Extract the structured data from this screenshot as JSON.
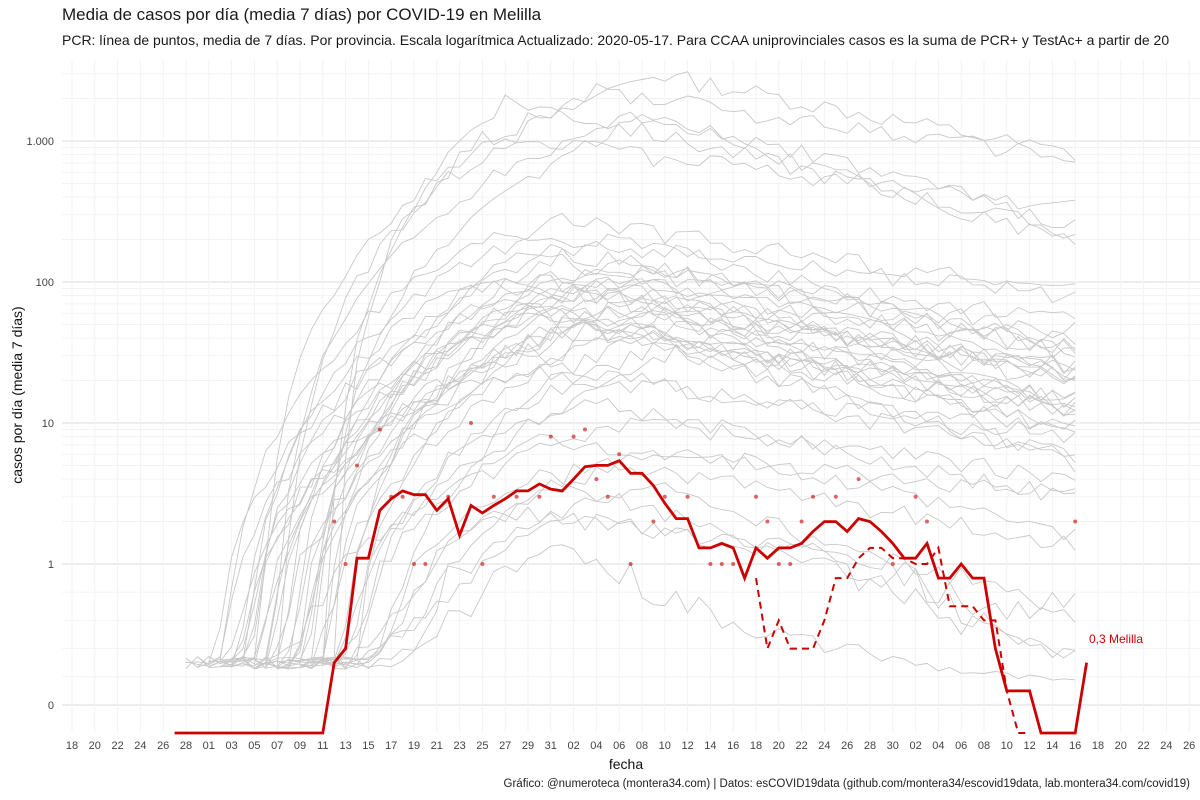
{
  "title": "Media de casos por día (media 7 días) por COVID-19 en Melilla",
  "subtitle": "PCR: línea de puntos, media de 7 días. Por provincia. Escala logarítmica  Actualizado: 2020-05-17. Para CCAA uniprovinciales casos es la suma de PCR+ y TestAc+ a partir de 20",
  "caption": "Gráfico: @numeroteca (montera34.com) | Datos: esCOVID19data (github.com/montera34/escovid19data, lab.montera34.com/covid19)",
  "chart_data": {
    "type": "line",
    "xlabel": "fecha",
    "ylabel": "casos por día (media 7 días)",
    "y_scale": "log",
    "grid": true,
    "y_ticks": [
      {
        "value": 0,
        "label": "0"
      },
      {
        "value": 1,
        "label": "1"
      },
      {
        "value": 10,
        "label": "10"
      },
      {
        "value": 100,
        "label": "100"
      },
      {
        "value": 1000,
        "label": "1.000"
      }
    ],
    "x_ticks": [
      "18",
      "20",
      "22",
      "24",
      "26",
      "28",
      "01",
      "03",
      "05",
      "07",
      "09",
      "11",
      "13",
      "15",
      "17",
      "19",
      "21",
      "23",
      "25",
      "27",
      "29",
      "31",
      "02",
      "04",
      "06",
      "08",
      "10",
      "12",
      "14",
      "16",
      "18",
      "20",
      "22",
      "24",
      "26",
      "28",
      "30",
      "02",
      "04",
      "06",
      "08",
      "10",
      "12",
      "14",
      "16",
      "18",
      "20",
      "22",
      "24",
      "26"
    ],
    "x_range": [
      "2020-02-18",
      "2020-06-26"
    ],
    "colors": {
      "highlight": "#cc0000",
      "background_lines": "#c8c8c8"
    },
    "highlight": {
      "name": "Melilla",
      "end_label": "0,3 Melilla",
      "x_start": "2020-02-27",
      "avg": [
        0,
        0,
        0,
        0,
        0,
        0,
        0,
        0,
        0,
        0,
        0,
        0,
        0,
        0,
        0.3,
        0.4,
        1.1,
        1.1,
        2.4,
        2.9,
        3.3,
        3.1,
        3.1,
        2.4,
        2.9,
        1.6,
        2.6,
        2.3,
        2.6,
        2.9,
        3.3,
        3.3,
        3.7,
        3.4,
        3.3,
        4,
        4.9,
        5,
        5,
        5.4,
        4.4,
        4.4,
        3.6,
        2.7,
        2.1,
        2.1,
        1.3,
        1.3,
        1.4,
        1.3,
        0.9,
        1.3,
        1.1,
        1.3,
        1.3,
        1.4,
        1.7,
        2,
        2,
        1.7,
        2.1,
        2,
        1.7,
        1.4,
        1.1,
        1.1,
        1.4,
        0.9,
        0.9,
        1,
        0.9,
        0.9,
        0.4,
        0.1,
        0.1,
        0.1,
        0,
        0,
        0,
        0,
        0.3
      ],
      "pcr_avg_x_start": "2020-04-18",
      "pcr_avg": [
        0.9,
        0.4,
        0.6,
        0.4,
        0.4,
        0.4,
        0.6,
        0.9,
        0.9,
        1.1,
        1.3,
        1.3,
        1.1,
        1.1,
        1,
        1,
        1.3,
        0.7,
        0.7,
        0.7,
        0.6,
        0.6,
        0.1,
        0,
        0
      ],
      "daily_points": [
        {
          "x": "2020-03-12",
          "y": 2
        },
        {
          "x": "2020-03-13",
          "y": 1
        },
        {
          "x": "2020-03-14",
          "y": 5
        },
        {
          "x": "2020-03-16",
          "y": 9
        },
        {
          "x": "2020-03-17",
          "y": 3
        },
        {
          "x": "2020-03-18",
          "y": 3
        },
        {
          "x": "2020-03-19",
          "y": 1
        },
        {
          "x": "2020-03-20",
          "y": 1
        },
        {
          "x": "2020-03-22",
          "y": 3
        },
        {
          "x": "2020-03-24",
          "y": 10
        },
        {
          "x": "2020-03-25",
          "y": 1
        },
        {
          "x": "2020-03-26",
          "y": 3
        },
        {
          "x": "2020-03-28",
          "y": 3
        },
        {
          "x": "2020-03-30",
          "y": 3
        },
        {
          "x": "2020-03-31",
          "y": 8
        },
        {
          "x": "2020-04-02",
          "y": 8
        },
        {
          "x": "2020-04-03",
          "y": 9
        },
        {
          "x": "2020-04-04",
          "y": 4
        },
        {
          "x": "2020-04-05",
          "y": 3
        },
        {
          "x": "2020-04-06",
          "y": 6
        },
        {
          "x": "2020-04-07",
          "y": 1
        },
        {
          "x": "2020-04-09",
          "y": 2
        },
        {
          "x": "2020-04-10",
          "y": 3
        },
        {
          "x": "2020-04-12",
          "y": 3
        },
        {
          "x": "2020-04-14",
          "y": 1
        },
        {
          "x": "2020-04-15",
          "y": 1
        },
        {
          "x": "2020-04-16",
          "y": 1
        },
        {
          "x": "2020-04-18",
          "y": 3
        },
        {
          "x": "2020-04-19",
          "y": 2
        },
        {
          "x": "2020-04-20",
          "y": 1
        },
        {
          "x": "2020-04-21",
          "y": 1
        },
        {
          "x": "2020-04-22",
          "y": 2
        },
        {
          "x": "2020-04-23",
          "y": 3
        },
        {
          "x": "2020-04-25",
          "y": 3
        },
        {
          "x": "2020-04-27",
          "y": 4
        },
        {
          "x": "2020-04-30",
          "y": 1
        },
        {
          "x": "2020-05-02",
          "y": 3
        },
        {
          "x": "2020-05-03",
          "y": 2
        },
        {
          "x": "2020-05-16",
          "y": 2
        }
      ]
    },
    "other_provinces_note_peak_values": [
      2400,
      1500,
      200,
      150,
      110,
      100,
      90,
      80,
      70,
      60,
      50,
      40,
      30,
      20,
      12,
      8,
      5,
      3,
      1.4
    ]
  }
}
